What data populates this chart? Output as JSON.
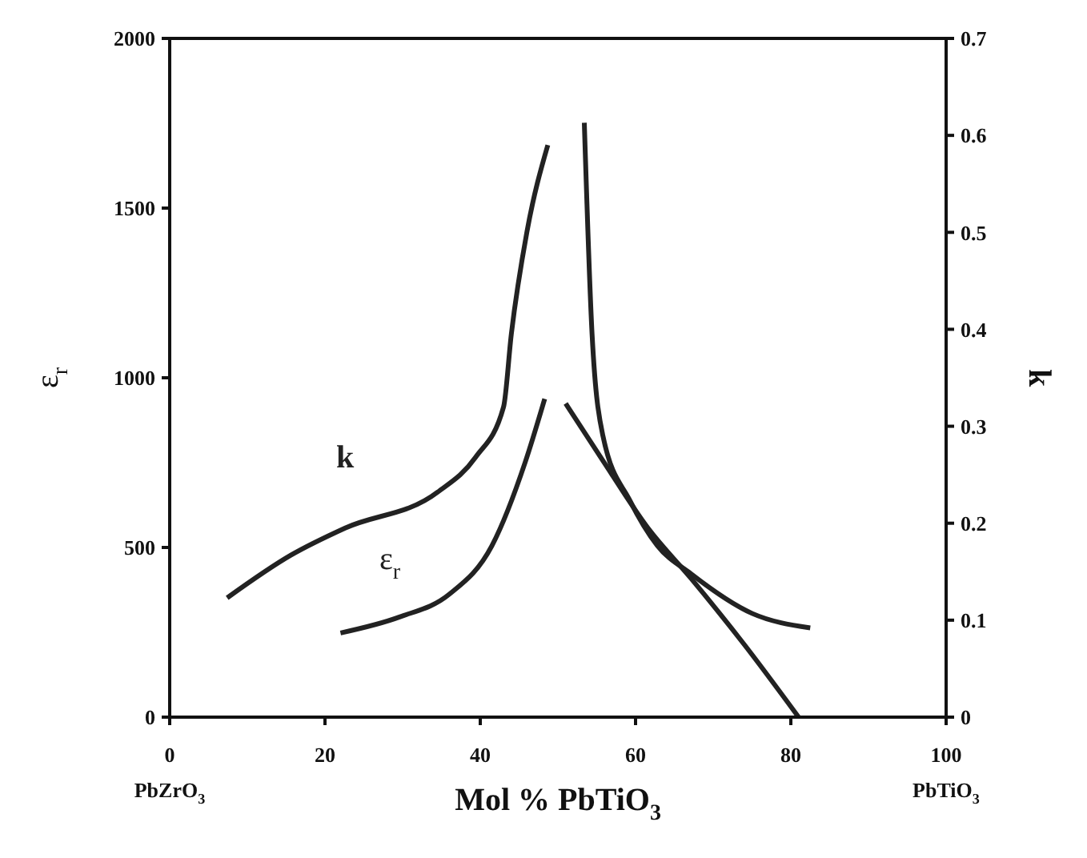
{
  "chart_data": {
    "type": "line",
    "xlabel": "Mol % PbTiO$_{3}$",
    "ylabel": "ε$_{r}$",
    "y2label": "k",
    "series": [
      {
        "name": "k",
        "color": "#222222",
        "axis": "y2",
        "x": [
          7.4,
          15.6,
          22.6,
          34.5,
          39.4,
          43,
          44,
          46,
          48.7,
          50,
          53.4,
          54.4,
          55.8,
          59.3,
          62.8,
          67.1,
          75,
          82.5
        ],
        "values": [
          0.123,
          0.167,
          0.195,
          0.232,
          0.268,
          0.32,
          0.395,
          0.5,
          0.59,
          null,
          0.613,
          0.395,
          0.29,
          0.223,
          0.177,
          0.148,
          0.107,
          0.092
        ]
      },
      {
        "name": "ε$_{r}$",
        "color": "#222222",
        "axis": "y",
        "x": [
          22,
          29.6,
          36,
          41.5,
          45.8,
          48.3,
          49.6,
          51,
          55.9,
          61.6,
          67.1,
          74,
          81
        ],
        "values": [
          248,
          295,
          362,
          505,
          752,
          938,
          null,
          924,
          752,
          557,
          410,
          214,
          0
        ]
      }
    ],
    "xlim": [
      0,
      100
    ],
    "xticks": [
      0,
      20,
      40,
      60,
      80,
      100
    ],
    "ylim": [
      0,
      2000
    ],
    "yticks": [
      0,
      500,
      1000,
      1500,
      2000
    ],
    "y2lim": [
      0,
      0.7
    ],
    "y2ticks": [
      0,
      0.1,
      0.2,
      0.3,
      0.4,
      0.5,
      0.6,
      0.7
    ],
    "grid": false,
    "legend": false,
    "marker": "none",
    "line_style": "solid",
    "annotations": [
      "PbZrO$_{3}$",
      "PbTiO$_{3}$"
    ]
  }
}
